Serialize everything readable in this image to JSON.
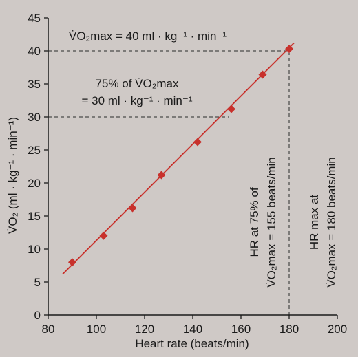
{
  "chart_data": {
    "type": "scatter",
    "xlabel": "Heart rate (beats/min)",
    "ylabel": "V̇O₂ (ml · kg⁻¹ · min⁻¹)",
    "xlim": [
      80,
      200
    ],
    "ylim": [
      0,
      45
    ],
    "xticks": [
      "80",
      "100",
      "120",
      "140",
      "160",
      "180",
      "200"
    ],
    "yticks": [
      "0",
      "5",
      "10",
      "15",
      "20",
      "25",
      "30",
      "35",
      "40",
      "45"
    ],
    "grid": false,
    "series": [
      {
        "x": [
          90,
          103,
          115,
          127,
          142,
          156,
          169,
          180
        ],
        "y": [
          8,
          12,
          16.2,
          21.2,
          26.2,
          31.2,
          36.4,
          40.3
        ],
        "marker": "diamond",
        "color": "#c8312c"
      }
    ],
    "fit_line": {
      "x": [
        86,
        182
      ],
      "y": [
        6.2,
        41.2
      ],
      "color": "#c8312c"
    },
    "reference_lines": [
      {
        "orientation": "horizontal",
        "y": 40,
        "x_end": 180,
        "style": "dashed"
      },
      {
        "orientation": "horizontal",
        "y": 30,
        "x_end": 155,
        "style": "dashed"
      },
      {
        "orientation": "vertical",
        "x": 155,
        "y_end": 30,
        "style": "dashed"
      },
      {
        "orientation": "vertical",
        "x": 180,
        "y_end": 40,
        "style": "dashed"
      }
    ],
    "annotations": {
      "vo2max": "V̇O₂max = 40 ml · kg⁻¹ · min⁻¹",
      "pct75_line1": "75% of V̇O₂max",
      "pct75_line2": "= 30 ml · kg⁻¹ · min⁻¹",
      "hr75_line1": "HR at 75% of",
      "hr75_line2": "V̇O₂max = 155 beats/min",
      "hrmax_line1": "HR max at",
      "hrmax_line2": "V̇O₂max = 180 beats/min"
    }
  },
  "colors": {
    "background": "#cfc9c6",
    "marker": "#c8312c",
    "line": "#c8312c",
    "text": "#1a1a1a"
  }
}
